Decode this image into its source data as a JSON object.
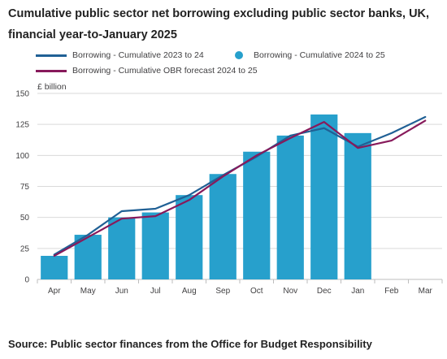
{
  "title": "Cumulative public sector net borrowing excluding public sector banks, UK, financial year-to-January 2025",
  "source": "Source: Public sector finances from the Office for Budget Responsibility",
  "colors": {
    "bars": "#27a0cc",
    "line_2023_24": "#206095",
    "line_obr": "#871a5b",
    "grid": "#d9d9d9",
    "axis": "#bebebe"
  },
  "chart_data": {
    "type": "bar",
    "title": "Cumulative public sector net borrowing excluding public sector banks, UK, financial year-to-January 2025",
    "ylabel": "£ billion",
    "xlabel": "",
    "ylim": [
      0,
      150
    ],
    "yticks": [
      "0",
      "25",
      "50",
      "75",
      "100",
      "125",
      "150"
    ],
    "grid": true,
    "legend_position": "top",
    "categories": [
      "Apr",
      "May",
      "Jun",
      "Jul",
      "Aug",
      "Sep",
      "Oct",
      "Nov",
      "Dec",
      "Jan",
      "Feb",
      "Mar"
    ],
    "series": [
      {
        "name": "Borrowing - Cumulative 2023 to 24",
        "type": "line",
        "values": [
          20,
          36,
          55,
          57,
          68,
          84,
          99,
          116,
          122,
          107,
          118,
          131
        ]
      },
      {
        "name": "Borrowing - Cumulative 2024 to 25",
        "type": "bar",
        "values": [
          19,
          36,
          50,
          54,
          68,
          85,
          103,
          116,
          133,
          118,
          null,
          null
        ]
      },
      {
        "name": "Borrowing - Cumulative OBR forecast 2024 to 25",
        "type": "line",
        "values": [
          19,
          34,
          49,
          51,
          64,
          83,
          100,
          114,
          127,
          106,
          112,
          128
        ]
      }
    ]
  }
}
